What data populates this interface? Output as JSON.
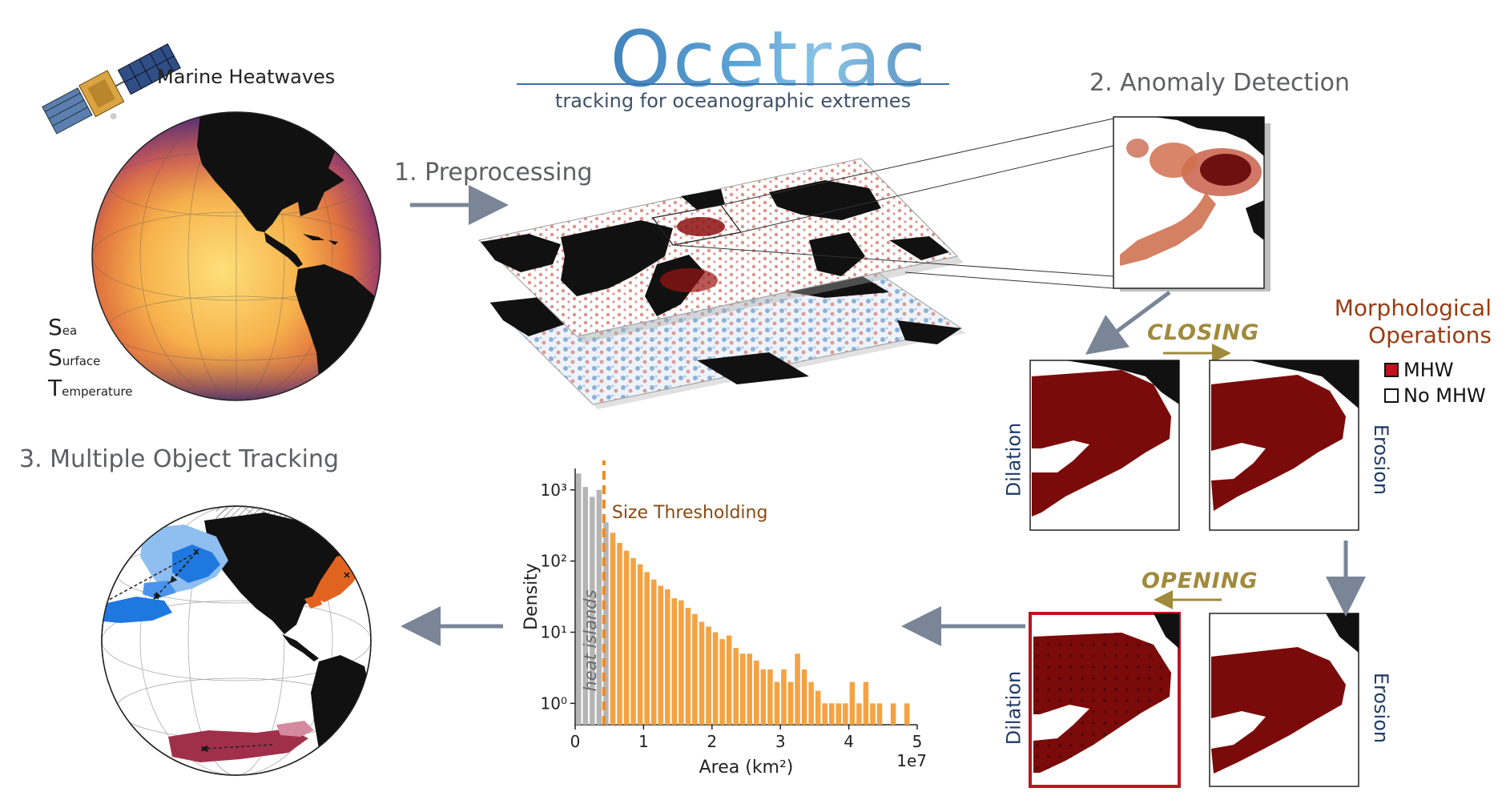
{
  "header": {
    "title": "Ocetrac",
    "subtitle": "tracking for oceanographic extremes"
  },
  "steps": {
    "preprocessing": "1.  Preprocessing",
    "anomaly_detection": "2.  Anomaly Detection",
    "object_tracking": "3.  Multiple Object Tracking"
  },
  "globe": {
    "label": "Marine Heatwaves",
    "sst": [
      {
        "initial": "S",
        "rest": "ea"
      },
      {
        "initial": "S",
        "rest": "urface"
      },
      {
        "initial": "T",
        "rest": "emperature"
      }
    ]
  },
  "morphology": {
    "closing_label": "CLOSING",
    "opening_label": "OPENING",
    "title_line1": "Morphological",
    "title_line2": "Operations",
    "legend": [
      {
        "label": "MHW",
        "color": "#c1121f"
      },
      {
        "label": "No MHW",
        "color": "#ffffff"
      }
    ],
    "panels": {
      "dilation_top": "Dilation",
      "erosion_top": "Erosion",
      "dilation_bottom": "Dilation",
      "erosion_bottom": "Erosion"
    },
    "colors": {
      "mhw_fill": "#7b0a0a",
      "highlight_border": "#c1121f"
    }
  },
  "chart_data": {
    "type": "bar",
    "ylabel": "Density",
    "xlabel": "Area (km²)",
    "x_offset_label": "1e7",
    "log_y": true,
    "xlim": [
      0,
      5
    ],
    "ylim": [
      1,
      2000
    ],
    "x_ticks": [
      "0",
      "1",
      "2",
      "3",
      "4",
      "5"
    ],
    "y_ticks": [
      "10⁰",
      "10¹",
      "10²",
      "10³"
    ],
    "threshold": 0.42,
    "threshold_label": "Size Thresholding",
    "below_threshold_label": "heat  islands",
    "colors": {
      "below": "#b5b5b5",
      "above": "#f5a242",
      "threshold": "#f08a24",
      "threshold_text": "#8a4a12"
    },
    "bin_width": 0.1,
    "bin_starts": [
      0.0,
      0.1,
      0.2,
      0.3,
      0.4,
      0.5,
      0.6,
      0.7,
      0.8,
      0.9,
      1.0,
      1.1,
      1.2,
      1.3,
      1.4,
      1.5,
      1.6,
      1.7,
      1.8,
      1.9,
      2.0,
      2.1,
      2.2,
      2.3,
      2.4,
      2.5,
      2.6,
      2.7,
      2.8,
      2.9,
      3.0,
      3.1,
      3.2,
      3.3,
      3.4,
      3.5,
      3.6,
      3.7,
      3.8,
      3.9,
      4.0,
      4.1,
      4.2,
      4.3,
      4.4,
      4.5,
      4.6,
      4.7,
      4.8
    ],
    "values": [
      1700,
      1100,
      800,
      1000,
      350,
      250,
      180,
      140,
      110,
      90,
      70,
      55,
      45,
      40,
      30,
      28,
      22,
      18,
      14,
      12,
      10,
      8,
      9,
      6,
      5,
      5,
      4,
      3,
      3,
      2,
      3,
      2,
      5,
      3,
      2,
      1.5,
      1,
      1,
      1,
      1,
      2,
      1,
      2,
      1,
      1,
      0,
      1,
      0,
      1
    ]
  }
}
